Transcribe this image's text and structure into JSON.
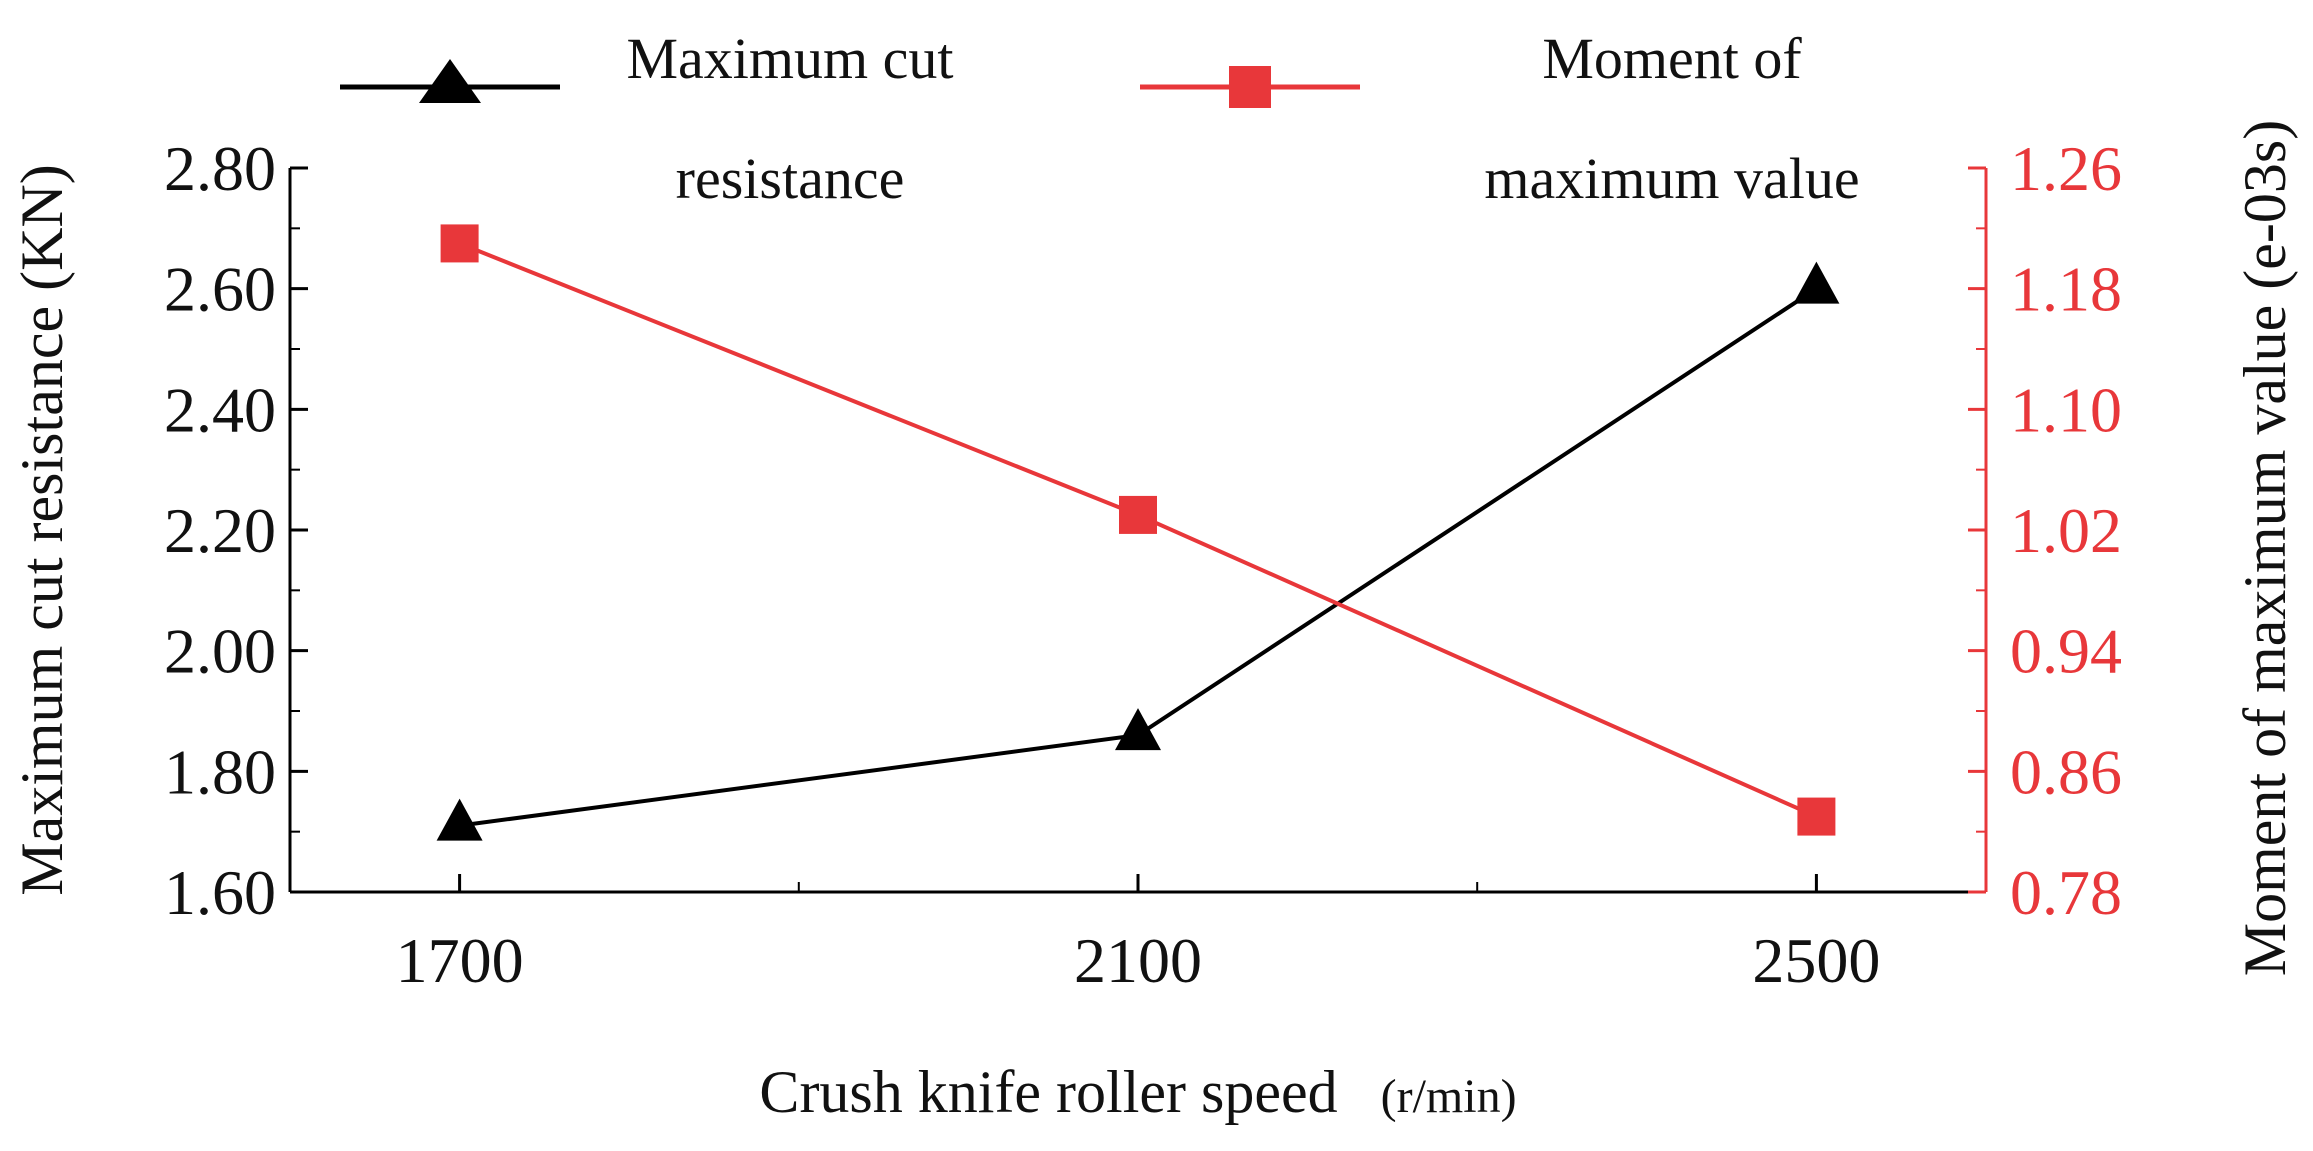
{
  "colors": {
    "series1": "#000000",
    "series2": "#e8373a",
    "axis_left": "#000000",
    "axis_right": "#e8373a",
    "text": "#111111"
  },
  "legend": {
    "items": [
      {
        "series": 0,
        "line1": "Maximum cut",
        "line2": "resistance"
      },
      {
        "series": 1,
        "line1": "Moment of",
        "line2": "maximum value"
      }
    ]
  },
  "chart_data": {
    "type": "line",
    "title": "",
    "xlabel": "Crush knife roller speed",
    "xlabel_unit": "(r/min)",
    "ylabel_left": "Maximum cut resistance (KN)",
    "ylabel_right": "Moment of maximum value (e-03s)",
    "x": [
      1700,
      2100,
      2500
    ],
    "x_ticks": [
      "1700",
      "2100",
      "2500"
    ],
    "xlim": [
      1600,
      2600
    ],
    "y_left_ticks": [
      "1.60",
      "1.80",
      "2.00",
      "2.20",
      "2.40",
      "2.60",
      "2.80"
    ],
    "ylim_left": [
      1.6,
      2.8
    ],
    "y_right_ticks": [
      "0.78",
      "0.86",
      "0.94",
      "1.02",
      "1.10",
      "1.18",
      "1.26"
    ],
    "ylim_right": [
      0.78,
      1.26
    ],
    "grid": false,
    "legend_position": "top",
    "series": [
      {
        "name": "Maximum cut resistance",
        "axis": "left",
        "marker": "triangle",
        "values": [
          1.71,
          1.86,
          2.6
        ]
      },
      {
        "name": "Moment of maximum value",
        "axis": "right",
        "marker": "square",
        "values": [
          1.21,
          1.03,
          0.83
        ]
      }
    ]
  }
}
